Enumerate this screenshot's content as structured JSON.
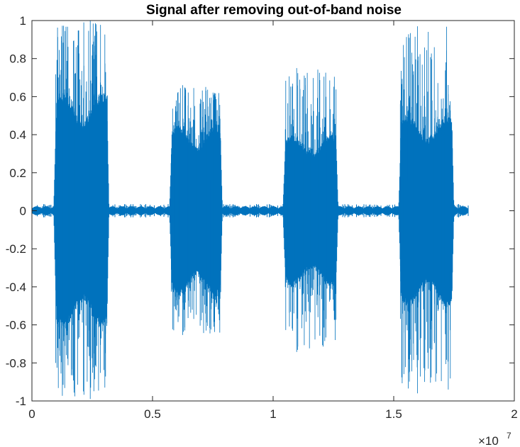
{
  "chart_data": {
    "type": "line",
    "title": "Signal after removing out-of-band noise",
    "xlabel": "",
    "ylabel": "",
    "xlim": [
      0,
      2
    ],
    "ylim": [
      -1,
      1
    ],
    "x_multiplier_label": "×10",
    "x_multiplier_exponent": "7",
    "xticks": [
      "0",
      "0.5",
      "1",
      "1.5",
      "2"
    ],
    "yticks": [
      "-1",
      "-0.8",
      "-0.6",
      "-0.4",
      "-0.2",
      "0",
      "0.2",
      "0.4",
      "0.6",
      "0.8",
      "1"
    ],
    "grid": false,
    "line_color": "#0072BD",
    "series": [
      {
        "x_range": [
          0,
          1.81
        ],
        "bursts": [
          {
            "x_start": 0.09,
            "x_end": 0.32,
            "envelope": 0.62,
            "peak": 1.0
          },
          {
            "x_start": 0.57,
            "x_end": 0.79,
            "envelope": 0.45,
            "peak": 0.66
          },
          {
            "x_start": 1.04,
            "x_end": 1.27,
            "envelope": 0.4,
            "peak": 0.75
          },
          {
            "x_start": 1.52,
            "x_end": 1.75,
            "envelope": 0.5,
            "peak": 0.97
          }
        ]
      }
    ]
  }
}
